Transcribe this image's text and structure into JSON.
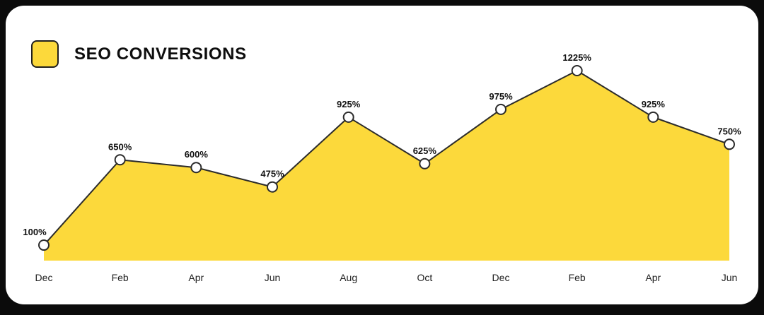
{
  "header": {
    "title": "SEO CONVERSIONS"
  },
  "colors": {
    "page_background": "#0b0b0b",
    "card_background": "#ffffff",
    "area_fill": "#FCD93B",
    "line_stroke": "#2b2b2b",
    "point_fill": "#ffffff",
    "point_stroke": "#2b2b2b",
    "value_label_text": "#111111",
    "axis_label_text": "#222222"
  },
  "chart_data": {
    "type": "area",
    "title": "SEO CONVERSIONS",
    "categories": [
      "Dec",
      "Feb",
      "Apr",
      "Jun",
      "Aug",
      "Oct",
      "Dec",
      "Feb",
      "Apr",
      "Jun"
    ],
    "values": [
      100,
      650,
      600,
      475,
      925,
      625,
      975,
      1225,
      925,
      750
    ],
    "point_labels": [
      "100%",
      "650%",
      "600%",
      "475%",
      "925%",
      "625%",
      "975%",
      "1225%",
      "925%",
      "750%"
    ],
    "xlabel": "",
    "ylabel": "",
    "ylim": [
      0,
      1300
    ],
    "grid": false,
    "y_axis_visible": false,
    "legend_position": "top-left",
    "legend_label": "SEO CONVERSIONS"
  }
}
